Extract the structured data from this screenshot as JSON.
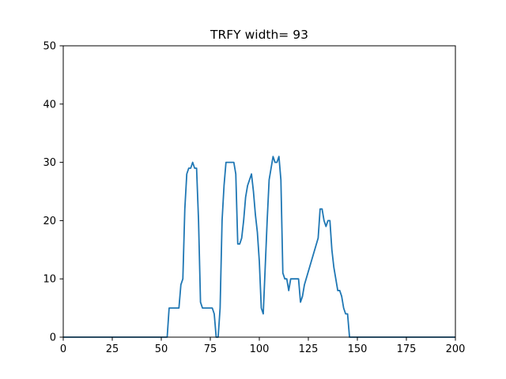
{
  "chart_data": {
    "type": "line",
    "title": "TRFY width= 93",
    "xlabel": "",
    "ylabel": "",
    "xlim": [
      0,
      200
    ],
    "ylim": [
      0,
      50
    ],
    "xticks": [
      0,
      25,
      50,
      75,
      100,
      125,
      150,
      175,
      200
    ],
    "yticks": [
      0,
      10,
      20,
      30,
      40,
      50
    ],
    "grid": false,
    "line_color": "#1f77b4",
    "series": [
      {
        "x": [
          0,
          53,
          54,
          59,
          60,
          61,
          62,
          63,
          64,
          65,
          66,
          67,
          68,
          69,
          70,
          71,
          76,
          77,
          78,
          79,
          80,
          81,
          82,
          83,
          84,
          87,
          88,
          89,
          90,
          91,
          92,
          93,
          94,
          95,
          96,
          97,
          98,
          99,
          100,
          101,
          102,
          103,
          104,
          105,
          106,
          107,
          108,
          109,
          110,
          111,
          112,
          113,
          114,
          115,
          116,
          120,
          121,
          122,
          123,
          130,
          131,
          132,
          133,
          134,
          135,
          136,
          137,
          138,
          139,
          140,
          141,
          142,
          143,
          144,
          145,
          146,
          200
        ],
        "y": [
          0,
          0,
          5,
          5,
          9,
          10,
          22,
          28,
          29,
          29,
          30,
          29,
          29,
          20,
          6,
          5,
          5,
          4,
          0,
          0,
          5,
          20,
          26,
          30,
          30,
          30,
          28,
          16,
          16,
          17,
          20,
          24,
          26,
          27,
          28,
          25,
          21,
          18,
          13,
          5,
          4,
          12,
          20,
          27,
          29,
          31,
          30,
          30,
          31,
          27,
          11,
          10,
          10,
          8,
          10,
          10,
          6,
          7,
          9,
          17,
          22,
          22,
          20,
          19,
          20,
          20,
          15,
          12,
          10,
          8,
          8,
          7,
          5,
          4,
          4,
          0,
          0
        ]
      }
    ]
  }
}
